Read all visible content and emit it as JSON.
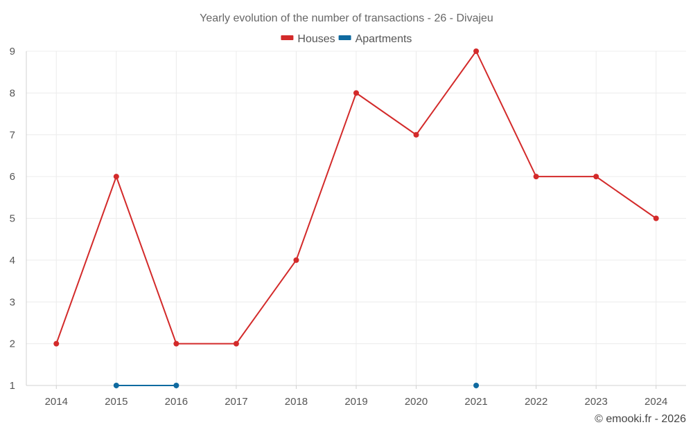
{
  "chart_data": {
    "type": "line",
    "title": "Yearly evolution of the number of transactions - 26 - Divajeu",
    "xlabel": "",
    "ylabel": "",
    "categories": [
      "2014",
      "2015",
      "2016",
      "2017",
      "2018",
      "2019",
      "2020",
      "2021",
      "2022",
      "2023",
      "2024"
    ],
    "ylim": [
      1,
      9
    ],
    "yticks": [
      1,
      2,
      3,
      4,
      5,
      6,
      7,
      8,
      9
    ],
    "grid": true,
    "legend_position": "top-center",
    "series": [
      {
        "name": "Houses",
        "color": "#d32a2a",
        "values": [
          2,
          6,
          2,
          2,
          4,
          8,
          7,
          9,
          6,
          6,
          5
        ]
      },
      {
        "name": "Apartments",
        "color": "#0f6aa0",
        "values": [
          null,
          1,
          1,
          null,
          null,
          null,
          null,
          1,
          null,
          null,
          null
        ]
      }
    ],
    "credit": "© emooki.fr - 2026"
  }
}
